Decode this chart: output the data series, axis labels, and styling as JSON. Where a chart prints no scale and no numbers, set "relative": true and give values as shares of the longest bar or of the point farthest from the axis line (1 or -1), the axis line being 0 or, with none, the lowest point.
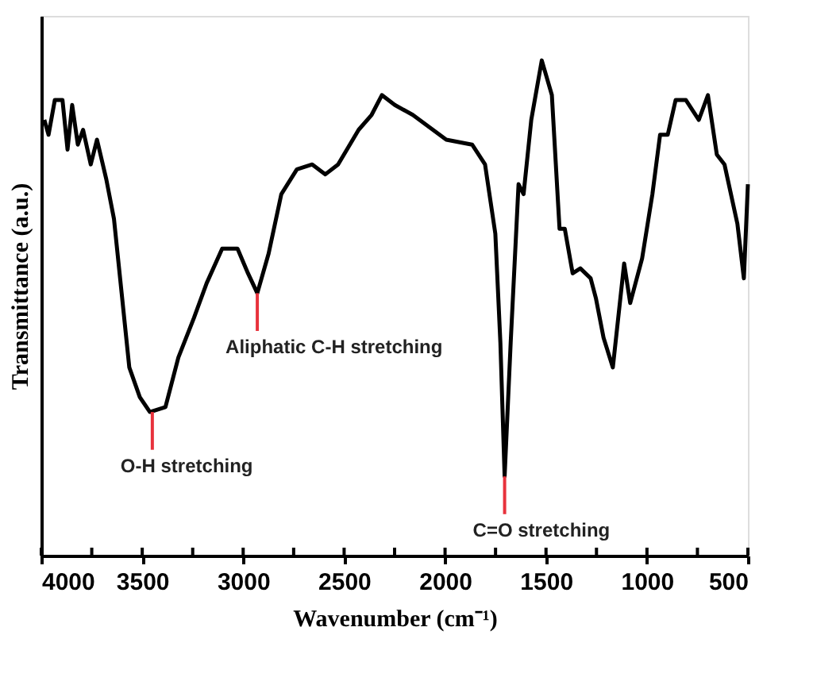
{
  "chart_data": {
    "type": "line",
    "relative": true,
    "xlabel": "Wavenumber (cm⁻¹)",
    "ylabel": "Transmittance (a.u.)",
    "grid": false,
    "marker": "none",
    "line_style": "solid",
    "xlim": [
      4000,
      500
    ],
    "xticks": [
      4000,
      {
        "value": 3750,
        "label": null
      },
      3500,
      {
        "value": 3250,
        "label": null
      },
      3000,
      {
        "value": 2750,
        "label": null
      },
      2500,
      {
        "value": 2250,
        "label": null
      },
      2000,
      {
        "value": 1750,
        "label": null
      },
      1500,
      {
        "value": 1250,
        "label": null
      },
      1000,
      {
        "value": 750,
        "label": null
      },
      500
    ],
    "x": [
      3985,
      3964,
      3933,
      3895,
      3870,
      3847,
      3819,
      3793,
      3755,
      3724,
      3678,
      3640,
      3602,
      3564,
      3512,
      3462,
      3385,
      3321,
      3244,
      3181,
      3104,
      3028,
      2976,
      2930,
      2874,
      2811,
      2734,
      2658,
      2593,
      2530,
      2428,
      2364,
      2313,
      2249,
      2160,
      1994,
      1866,
      1802,
      1751,
      1726,
      1705,
      1675,
      1636,
      1611,
      1573,
      1521,
      1471,
      1433,
      1407,
      1368,
      1330,
      1279,
      1253,
      1215,
      1169,
      1113,
      1083,
      1024,
      973,
      935,
      897,
      858,
      807,
      743,
      698,
      654,
      616,
      552,
      520,
      500
    ],
    "series": [
      {
        "color": "#000000",
        "values": [
          0.88,
          0.85,
          0.92,
          0.92,
          0.82,
          0.91,
          0.83,
          0.86,
          0.79,
          0.84,
          0.76,
          0.68,
          0.53,
          0.38,
          0.32,
          0.29,
          0.3,
          0.4,
          0.48,
          0.55,
          0.62,
          0.62,
          0.57,
          0.53,
          0.61,
          0.73,
          0.78,
          0.79,
          0.77,
          0.79,
          0.86,
          0.89,
          0.93,
          0.91,
          0.89,
          0.84,
          0.83,
          0.79,
          0.65,
          0.43,
          0.16,
          0.43,
          0.75,
          0.73,
          0.88,
          1.0,
          0.93,
          0.66,
          0.66,
          0.57,
          0.58,
          0.56,
          0.52,
          0.44,
          0.38,
          0.59,
          0.51,
          0.6,
          0.73,
          0.85,
          0.85,
          0.92,
          0.92,
          0.88,
          0.93,
          0.81,
          0.79,
          0.67,
          0.56,
          0.75
        ]
      }
    ],
    "annotations": [
      {
        "text": "O-H stretching",
        "x": 3450,
        "y": 0.29
      },
      {
        "text": "Aliphatic C-H stretching",
        "x": 2930,
        "y": 0.53
      },
      {
        "text": "C=O stretching",
        "x": 1705,
        "y": 0.16
      }
    ]
  }
}
